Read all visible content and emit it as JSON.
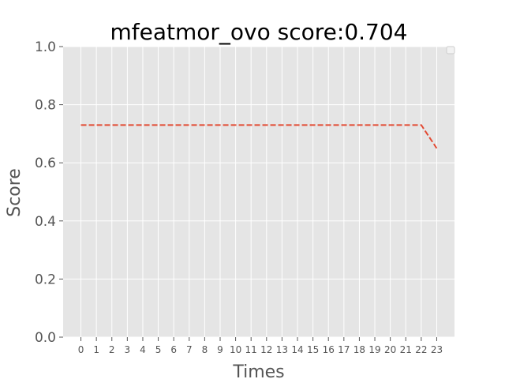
{
  "chart_data": {
    "type": "line",
    "title": "mfeatmor_ovo score:0.704",
    "xlabel": "Times",
    "ylabel": "Score",
    "x": [
      0,
      1,
      2,
      3,
      4,
      5,
      6,
      7,
      8,
      9,
      10,
      11,
      12,
      13,
      14,
      15,
      16,
      17,
      18,
      19,
      20,
      21,
      22,
      23
    ],
    "xlim": [
      -1.15,
      24.15
    ],
    "ylim": [
      0.0,
      1.0
    ],
    "yticks": [
      0.0,
      0.2,
      0.4,
      0.6,
      0.8,
      1.0
    ],
    "ytick_labels": [
      "0.0",
      "0.2",
      "0.4",
      "0.6",
      "0.8",
      "1.0"
    ],
    "xtick_labels": [
      "0",
      "1",
      "2",
      "3",
      "4",
      "5",
      "6",
      "7",
      "8",
      "9",
      "10",
      "11",
      "12",
      "13",
      "14",
      "15",
      "16",
      "17",
      "18",
      "19",
      "20",
      "21",
      "22",
      "23"
    ],
    "grid": true,
    "legend": "top-right (empty)",
    "series": [
      {
        "values": [
          0.73,
          0.73,
          0.73,
          0.73,
          0.73,
          0.73,
          0.73,
          0.73,
          0.73,
          0.73,
          0.73,
          0.73,
          0.73,
          0.73,
          0.73,
          0.73,
          0.73,
          0.73,
          0.73,
          0.73,
          0.73,
          0.73,
          0.73,
          0.65
        ],
        "color": "#E24A33",
        "line_style": "dashed"
      }
    ],
    "colors": {
      "plot_background": "#E5E5E5",
      "grid": "#FFFFFF",
      "tick_text": "#555555"
    }
  }
}
